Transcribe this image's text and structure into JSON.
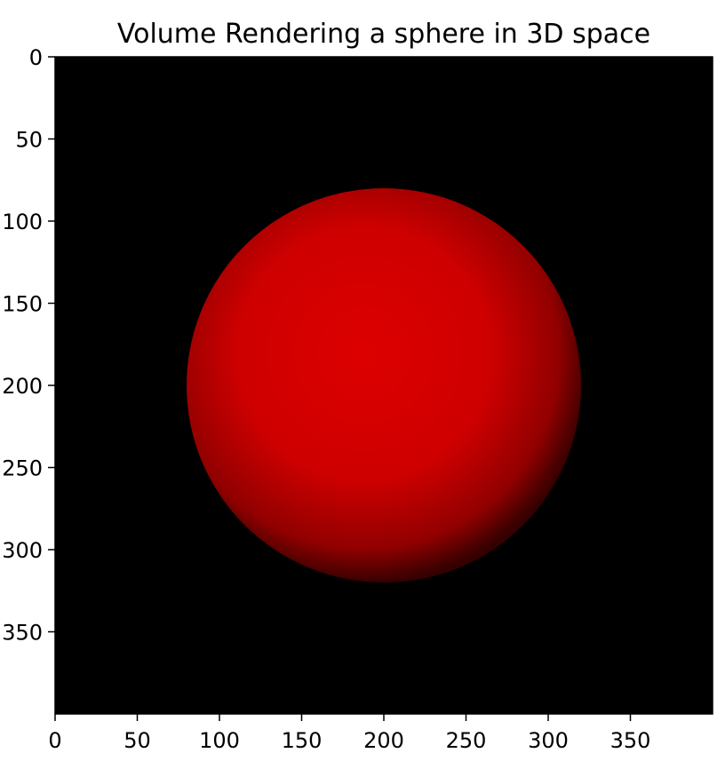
{
  "chart_data": {
    "type": "heatmap",
    "title": "Volume Rendering a sphere in 3D space",
    "xlabel": "",
    "ylabel": "",
    "xlim": [
      0,
      400
    ],
    "ylim": [
      400,
      0
    ],
    "x_ticks": [
      0,
      50,
      100,
      150,
      200,
      250,
      300,
      350
    ],
    "y_ticks": [
      0,
      50,
      100,
      150,
      200,
      250,
      300,
      350
    ],
    "grid": false,
    "background_color": "#000000",
    "sphere": {
      "center": [
        200,
        200
      ],
      "radius": 120,
      "color": "#dd0000"
    }
  }
}
